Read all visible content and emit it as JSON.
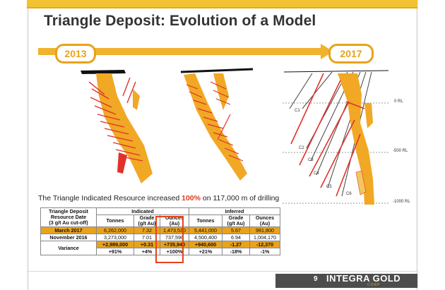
{
  "title": "Triangle Deposit: Evolution of a Model",
  "timeline": {
    "start_label": "2013",
    "end_label": "2017",
    "accent": "#e8a21a"
  },
  "section_labels": {
    "rl": [
      "0 RL",
      "-500 RL",
      "-1000 RL"
    ],
    "cores": [
      "C1",
      "C2",
      "C3",
      "C4",
      "C5",
      "C6"
    ]
  },
  "statement": {
    "before": "The Triangle Indicated Resource increased ",
    "highlight": "100%",
    "after": " on 117,000 m of drilling"
  },
  "table": {
    "corner": [
      "Triangle Deposit",
      "Resource Date",
      "(3 g/t Au cut-off)"
    ],
    "group_indicated": "Indicated",
    "group_inferred": "Inferred",
    "cols": {
      "tonnes": "Tonnes",
      "grade_1": "Grade",
      "grade_2": "(g/t Au)",
      "ounces_1": "Ounces",
      "ounces_2": "(Au)",
      "inf_tonnes": "Tonnes",
      "inf_grade_1": "Grade",
      "inf_grade_2": "(g/t Au)",
      "inf_ounces_1": "Ounces",
      "inf_ounces_2": "(Au)"
    },
    "rows": [
      {
        "label": "March 2017",
        "ind_t": "6,262,000",
        "ind_g": "7.32",
        "ind_o": "1,473,530",
        "inf_t": "5,441,000",
        "inf_g": "5.67",
        "inf_o": "991,800"
      },
      {
        "label": "November 2016",
        "ind_t": "3,273,000",
        "ind_g": "7.01",
        "ind_o": "737,590",
        "inf_t": "4,500,400",
        "inf_g": "6.94",
        "inf_o": "1,004,170"
      }
    ],
    "variance": {
      "label": "Variance",
      "abs": {
        "ind_t": "+2,989,000",
        "ind_g": "+0.31",
        "ind_o": "+735,940",
        "inf_t": "+940,600",
        "inf_g": "-1.27",
        "inf_o": "-12,370"
      },
      "pct": {
        "ind_t": "+91%",
        "ind_g": "+4%",
        "ind_o": "+100%",
        "inf_t": "+21%",
        "inf_g": "-18%",
        "inf_o": "-1%"
      }
    }
  },
  "footer": {
    "page": "9",
    "logo": "INTEGRA GOLD",
    "logo_sub": "CORP"
  },
  "colors": {
    "orebody": "#f1a825",
    "vein": "#e0322a",
    "drill": "#555555",
    "highlight_box": "#e8421c"
  }
}
